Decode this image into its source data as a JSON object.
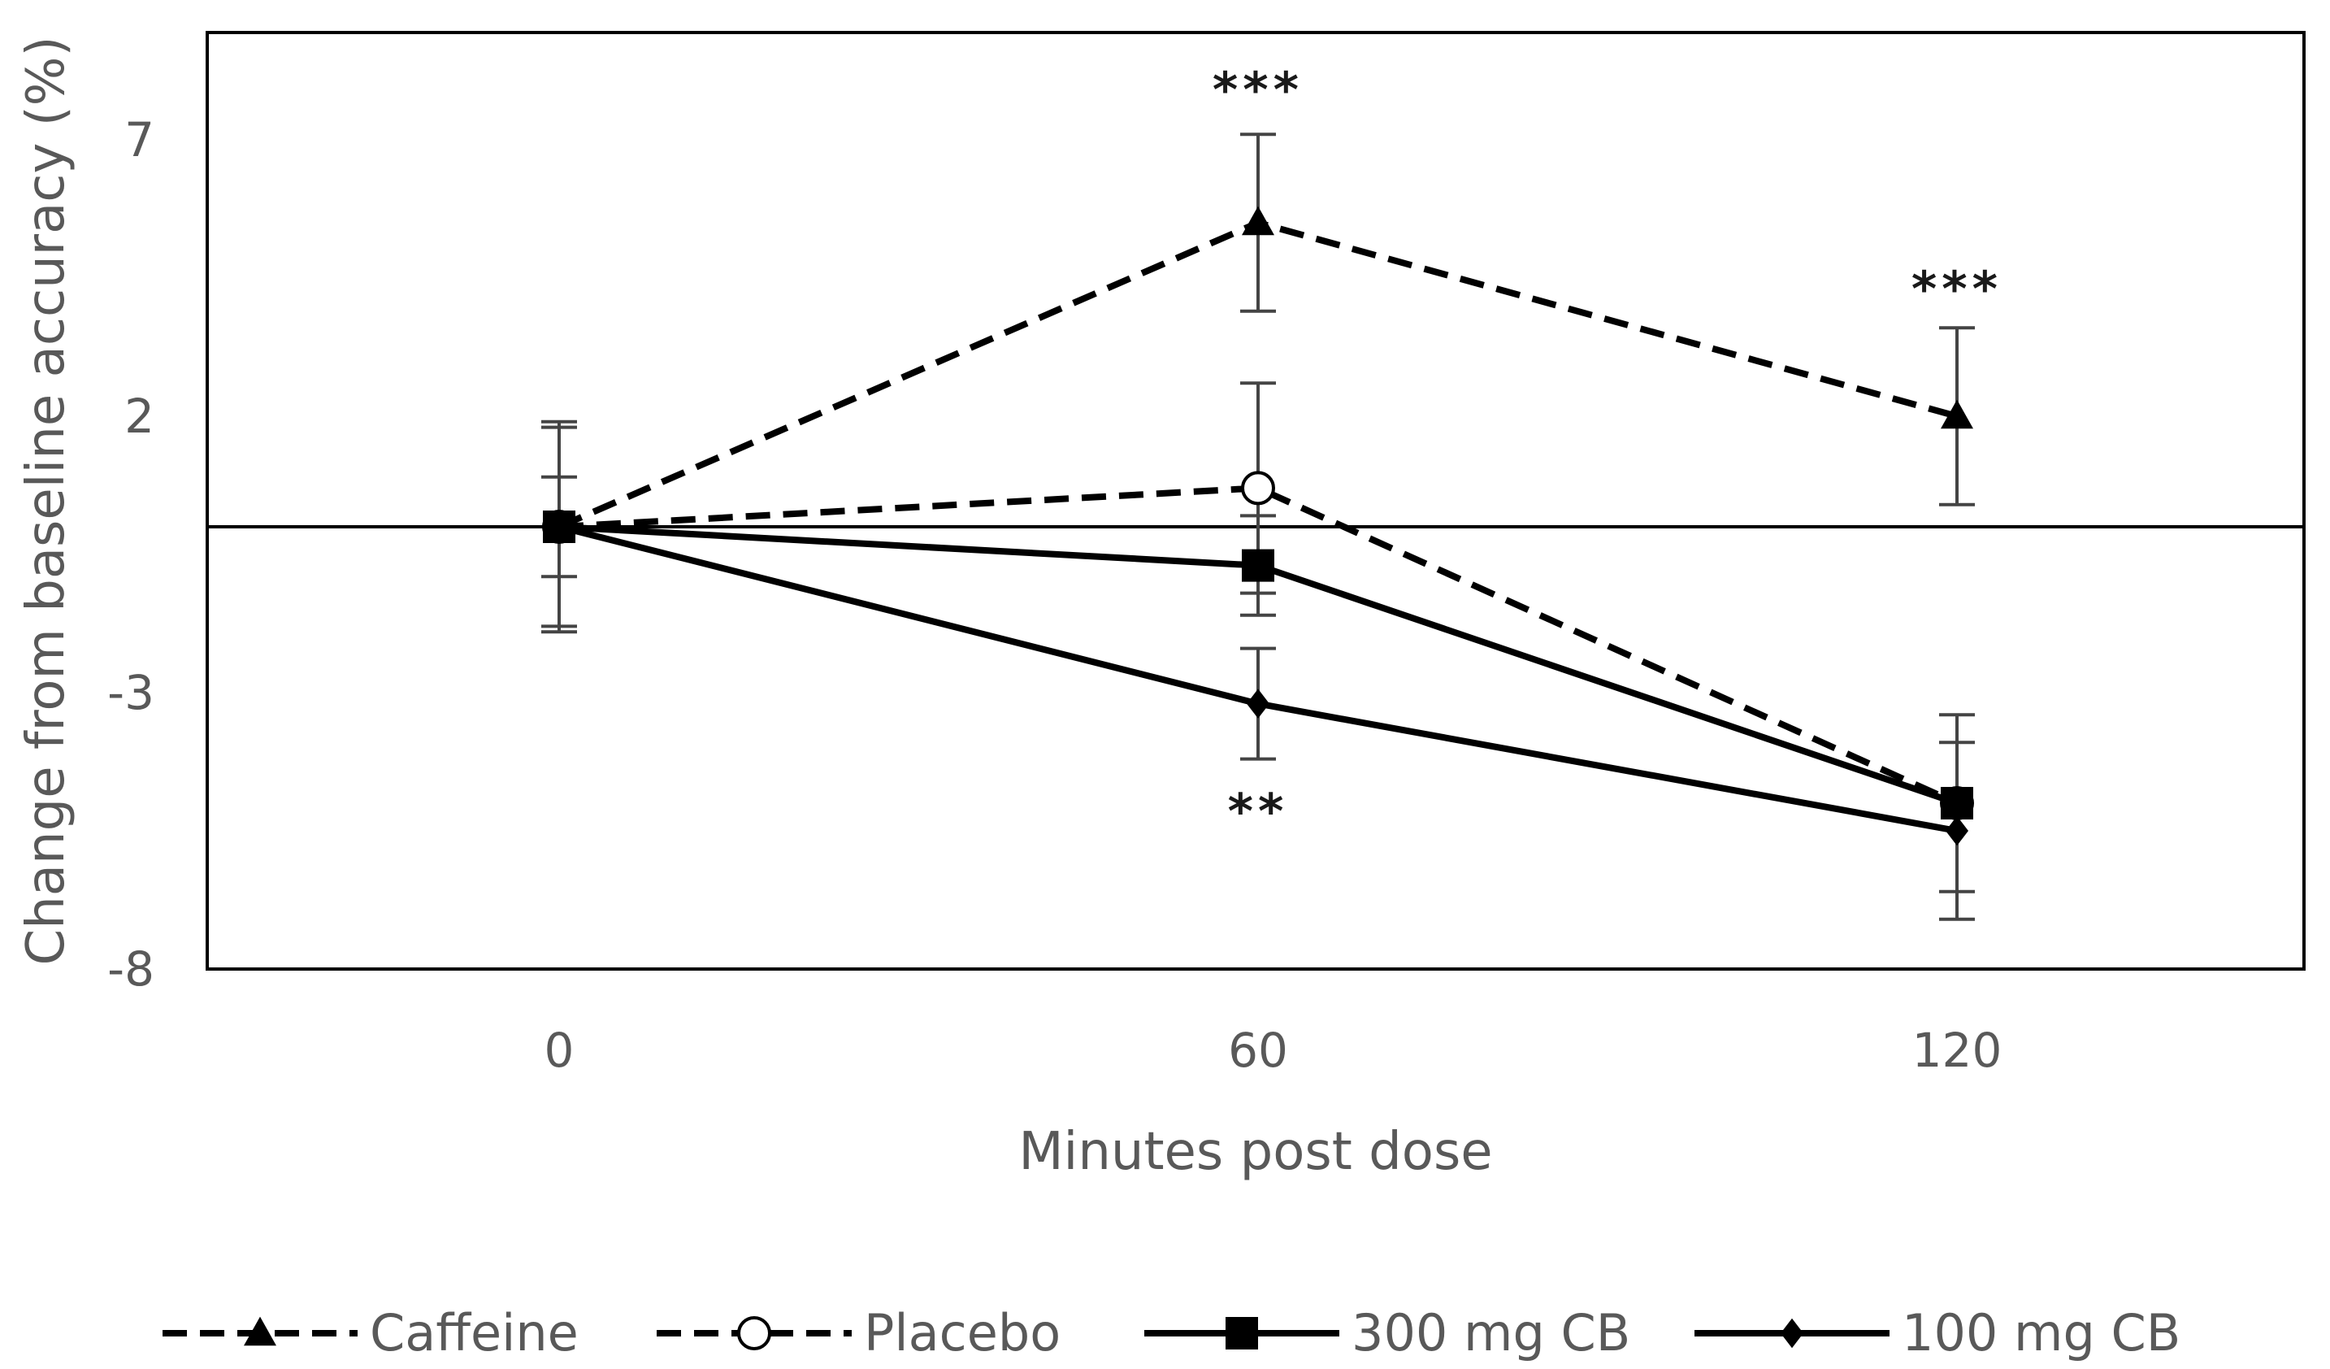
{
  "chart_data": {
    "type": "line",
    "title": "",
    "xlabel": "Minutes post dose",
    "ylabel": "Change from baseline accuracy (%)",
    "x": [
      0,
      60,
      120
    ],
    "xticks": [
      "0",
      "60",
      "120"
    ],
    "yticks": [
      "7",
      "2",
      "-3",
      "-8"
    ],
    "ytick_values": [
      7,
      2,
      -3,
      -8
    ],
    "ylim": [
      -8,
      9
    ],
    "baseline": 0,
    "legend_position": "bottom",
    "series": [
      {
        "name": "Caffeine",
        "line": "dashed",
        "marker": "triangle",
        "values": [
          0,
          5.5,
          2.0
        ],
        "errors": [
          0,
          1.6,
          1.6
        ]
      },
      {
        "name": "Placebo",
        "line": "dashed",
        "marker": "open-circle",
        "values": [
          0,
          0.7,
          -5.0
        ],
        "errors": [
          1.8,
          1.9,
          0
        ]
      },
      {
        "name": "300 mg CB",
        "line": "solid",
        "marker": "square",
        "values": [
          0,
          -0.7,
          -5.0
        ],
        "errors": [
          0.9,
          0.9,
          1.6
        ]
      },
      {
        "name": "100 mg CB",
        "line": "solid",
        "marker": "small-diamond",
        "values": [
          0,
          -3.2,
          -5.5
        ],
        "errors": [
          1.9,
          1.0,
          1.6
        ]
      }
    ],
    "annotations": [
      {
        "text": "***",
        "x": 60,
        "y": 7.6,
        "anchor": "above"
      },
      {
        "text": "***",
        "x": 120,
        "y": 4.0,
        "anchor": "above"
      },
      {
        "text": "**",
        "x": 60,
        "y": -4.8,
        "anchor": "below"
      }
    ]
  }
}
